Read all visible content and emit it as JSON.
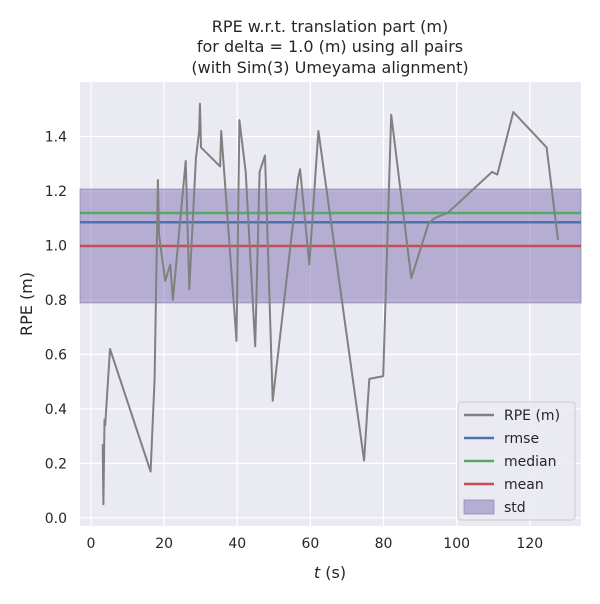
{
  "chart_data": {
    "type": "line",
    "title_lines": [
      "RPE w.r.t. translation part (m)",
      "for delta = 1.0 (m) using all pairs",
      "(with Sim(3) Umeyama alignment)"
    ],
    "xlabel_italic": "t",
    "xlabel_rest": " (s)",
    "ylabel": "RPE (m)",
    "xlim": [
      -3,
      134
    ],
    "ylim": [
      -0.03,
      1.6
    ],
    "x_ticks": [
      0,
      20,
      40,
      60,
      80,
      100,
      120
    ],
    "x_tick_labels": [
      "0",
      "20",
      "40",
      "60",
      "80",
      "100",
      "120"
    ],
    "y_ticks": [
      0.0,
      0.2,
      0.4,
      0.6,
      0.8,
      1.0,
      1.2,
      1.4
    ],
    "y_tick_labels": [
      "0.0",
      "0.2",
      "0.4",
      "0.6",
      "0.8",
      "1.0",
      "1.2",
      "1.4"
    ],
    "grid": true,
    "legend_position": "lower-right",
    "legend": [
      {
        "label": "RPE (m)",
        "kind": "line",
        "color": "#808080"
      },
      {
        "label": "rmse",
        "kind": "line",
        "color": "#4c72b0"
      },
      {
        "label": "median",
        "kind": "line",
        "color": "#55a868"
      },
      {
        "label": "mean",
        "kind": "line",
        "color": "#c44e52"
      },
      {
        "label": "std",
        "kind": "patch",
        "color": "#8172b2"
      }
    ],
    "series": [
      {
        "name": "RPE (m)",
        "color": "#808080",
        "x": [
          3.2,
          3.4,
          3.7,
          3.9,
          5.2,
          16.3,
          17.4,
          18.3,
          18.6,
          20.3,
          21.7,
          22.4,
          25.9,
          26.9,
          28.7,
          29.6,
          29.8,
          29.9,
          30.1,
          35.3,
          35.6,
          39.8,
          40.6,
          42.3,
          44.9,
          46.1,
          47.6,
          49.7,
          56.7,
          57.2,
          59.7,
          62.2,
          74.7,
          75.2,
          76.1,
          79.9,
          82.1,
          87.6,
          92.3,
          93.9,
          97.6,
          109.7,
          111.1,
          115.5,
          124.6,
          127.7
        ],
        "y": [
          0.27,
          0.05,
          0.36,
          0.34,
          0.62,
          0.17,
          0.51,
          1.24,
          1.04,
          0.87,
          0.93,
          0.8,
          1.31,
          0.84,
          1.32,
          1.42,
          1.52,
          1.47,
          1.36,
          1.29,
          1.42,
          0.65,
          1.46,
          1.27,
          0.63,
          1.27,
          1.33,
          0.43,
          1.25,
          1.28,
          0.93,
          1.42,
          0.21,
          0.32,
          0.51,
          0.52,
          1.48,
          0.88,
          1.08,
          1.1,
          1.12,
          1.27,
          1.26,
          1.49,
          1.36,
          1.02
        ]
      }
    ],
    "stats": {
      "rmse": 1.085,
      "median": 1.119,
      "mean": 0.998,
      "std_band": [
        0.789,
        1.207
      ]
    }
  }
}
